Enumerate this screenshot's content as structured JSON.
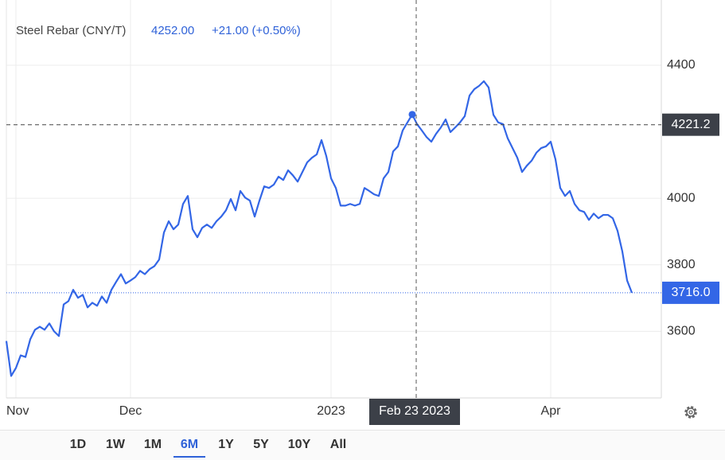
{
  "chart_data": {
    "type": "line",
    "title": "Steel Rebar (CNY/T)",
    "price": {
      "value": 4252,
      "label": "4252.00"
    },
    "change": "+21.00 (+0.50%)",
    "color": "#3366e6",
    "categories": [
      null,
      null,
      "Nov",
      null,
      null,
      null,
      null,
      null,
      null,
      null,
      null,
      null,
      null,
      null,
      null,
      null,
      null,
      null,
      null,
      null,
      null,
      null,
      null,
      null,
      null,
      null,
      "Dec",
      null,
      null,
      null,
      null,
      null,
      null,
      null,
      null,
      null,
      null,
      null,
      null,
      null,
      null,
      null,
      null,
      null,
      null,
      null,
      null,
      null,
      null,
      null,
      null,
      null,
      null,
      null,
      null,
      null,
      null,
      null,
      null,
      null,
      null,
      null,
      null,
      null,
      null,
      null,
      null,
      null,
      "2023",
      null,
      null,
      null,
      null,
      null,
      null,
      null,
      null,
      null,
      null,
      null,
      null,
      null,
      null,
      null,
      null,
      "Feb 23 2023",
      null,
      null,
      null,
      null,
      null,
      null,
      null,
      null,
      null,
      null,
      null,
      null,
      null,
      null,
      null,
      null,
      null,
      null,
      null,
      null,
      null,
      null,
      null,
      null,
      null,
      null,
      null,
      null,
      "Apr",
      null,
      null,
      null,
      null,
      null,
      null,
      null,
      null,
      null,
      null,
      null,
      null,
      null,
      null,
      null,
      null,
      null
    ],
    "values": [
      3571,
      3466,
      3490,
      3528,
      3523,
      3576,
      3605,
      3614,
      3605,
      3624,
      3600,
      3586,
      3681,
      3691,
      3725,
      3701,
      3710,
      3672,
      3686,
      3677,
      3705,
      3686,
      3725,
      3749,
      3772,
      3744,
      3753,
      3763,
      3782,
      3772,
      3787,
      3796,
      3816,
      3897,
      3931,
      3907,
      3921,
      3983,
      4007,
      3907,
      3883,
      3911,
      3921,
      3911,
      3931,
      3945,
      3964,
      3998,
      3964,
      4022,
      4002,
      3993,
      3945,
      3993,
      4036,
      4031,
      4041,
      4065,
      4055,
      4084,
      4069,
      4050,
      4079,
      4108,
      4122,
      4132,
      4175,
      4127,
      4060,
      4031,
      3978,
      3978,
      3983,
      3978,
      3983,
      4031,
      4022,
      4012,
      4007,
      4060,
      4079,
      4141,
      4156,
      4204,
      4228,
      4252,
      4223,
      4204,
      4184,
      4170,
      4194,
      4213,
      4237,
      4199,
      4213,
      4228,
      4247,
      4309,
      4328,
      4338,
      4352,
      4333,
      4251,
      4228,
      4223,
      4180,
      4151,
      4122,
      4079,
      4098,
      4113,
      4137,
      4151,
      4156,
      4170,
      4117,
      4031,
      4007,
      4022,
      3983,
      3964,
      3959,
      3935,
      3954,
      3940,
      3950,
      3950,
      3940,
      3902,
      3840,
      3753,
      3716
    ],
    "ylim": [
      3400,
      4596
    ],
    "yticks": [
      3600,
      3800,
      4000,
      4400
    ],
    "grid": true,
    "crosshair_y": {
      "value": 4221.2,
      "label": "4221.2"
    },
    "last_price": {
      "value": 3716,
      "label": "3716.0"
    },
    "ranges": [
      "1D",
      "1W",
      "1M",
      "6M",
      "1Y",
      "5Y",
      "10Y",
      "All"
    ],
    "active_range": "6M"
  }
}
